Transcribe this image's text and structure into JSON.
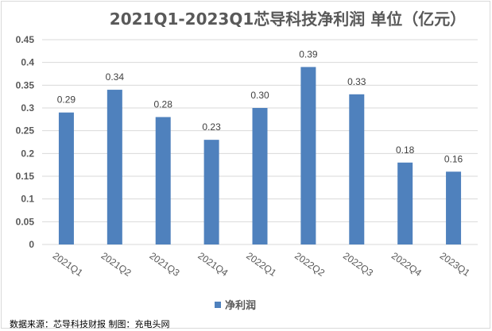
{
  "chart_data": {
    "type": "bar",
    "title": "2021Q1-2023Q1芯导科技净利润 单位（亿元）",
    "categories": [
      "2021Q1",
      "2021Q2",
      "2021Q3",
      "2021Q4",
      "2022Q1",
      "2022Q2",
      "2022Q3",
      "2022Q4",
      "2023Q1"
    ],
    "series": [
      {
        "name": "净利润",
        "values": [
          0.29,
          0.34,
          0.28,
          0.23,
          0.3,
          0.39,
          0.33,
          0.18,
          0.16
        ],
        "labels": [
          "0.29",
          "0.34",
          "0.28",
          "0.23",
          "0.30",
          "0.39",
          "0.33",
          "0.18",
          "0.16"
        ]
      }
    ],
    "ylim": [
      0,
      0.45
    ],
    "yticks": [
      "0",
      "0.05",
      "0.1",
      "0.15",
      "0.2",
      "0.25",
      "0.3",
      "0.35",
      "0.4",
      "0.45"
    ],
    "grid": true,
    "legend": "bottom",
    "color": "#4f81bd",
    "source": "数据来源：芯导科技财报 制图：充电头网"
  }
}
